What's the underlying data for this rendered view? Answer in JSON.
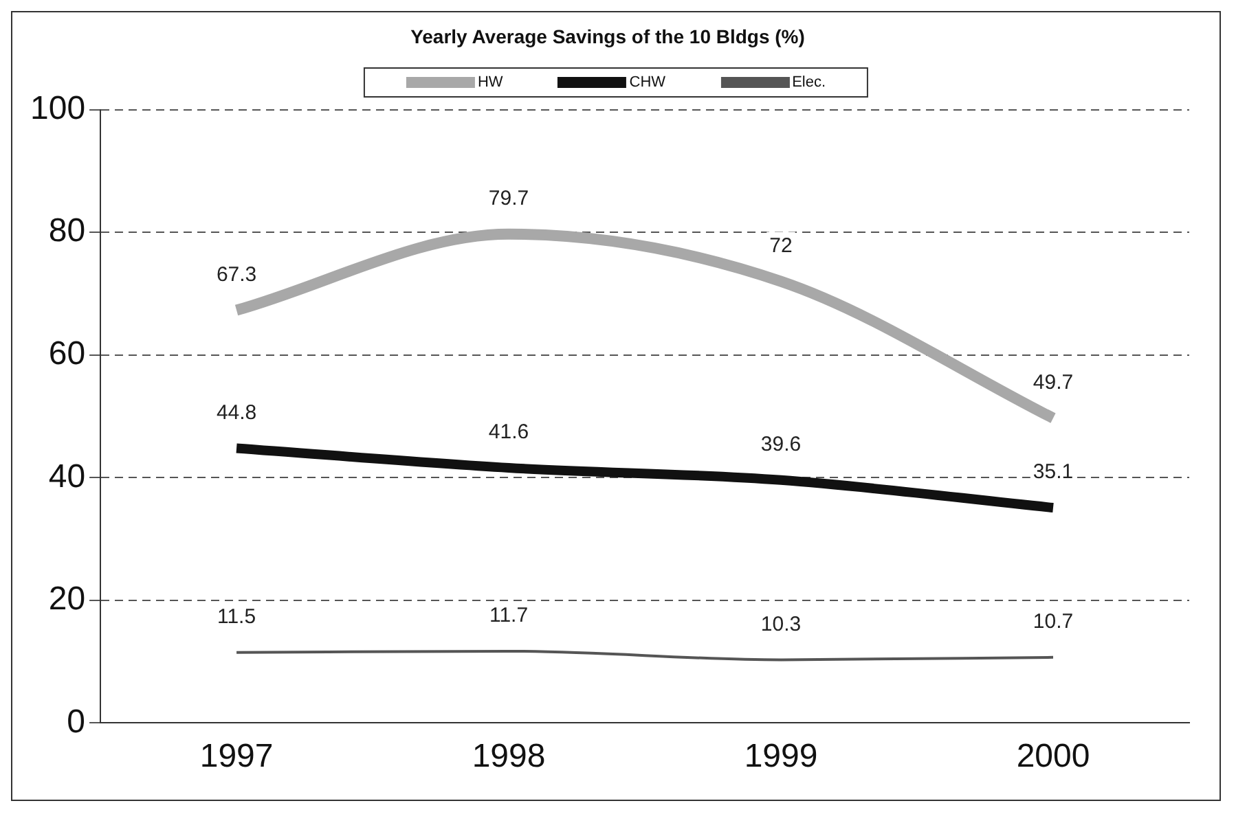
{
  "chart_data": {
    "type": "line",
    "title": "Yearly Average Savings of the 10 Bldgs (%)",
    "categories": [
      "1997",
      "1998",
      "1999",
      "2000"
    ],
    "series": [
      {
        "name": "HW",
        "color": "#a8a8a8",
        "values": [
          67.3,
          79.7,
          72,
          49.7
        ]
      },
      {
        "name": "CHW",
        "color": "#111111",
        "values": [
          44.8,
          41.6,
          39.6,
          35.1
        ]
      },
      {
        "name": "Elec.",
        "color": "#555555",
        "values": [
          11.5,
          11.7,
          10.3,
          10.7
        ]
      }
    ],
    "ylim": [
      0,
      100
    ],
    "yticks": [
      0,
      20,
      40,
      60,
      80,
      100
    ],
    "grid": "y",
    "line_style": "solid",
    "marker": "none",
    "legend": "top",
    "data_labels": true
  }
}
